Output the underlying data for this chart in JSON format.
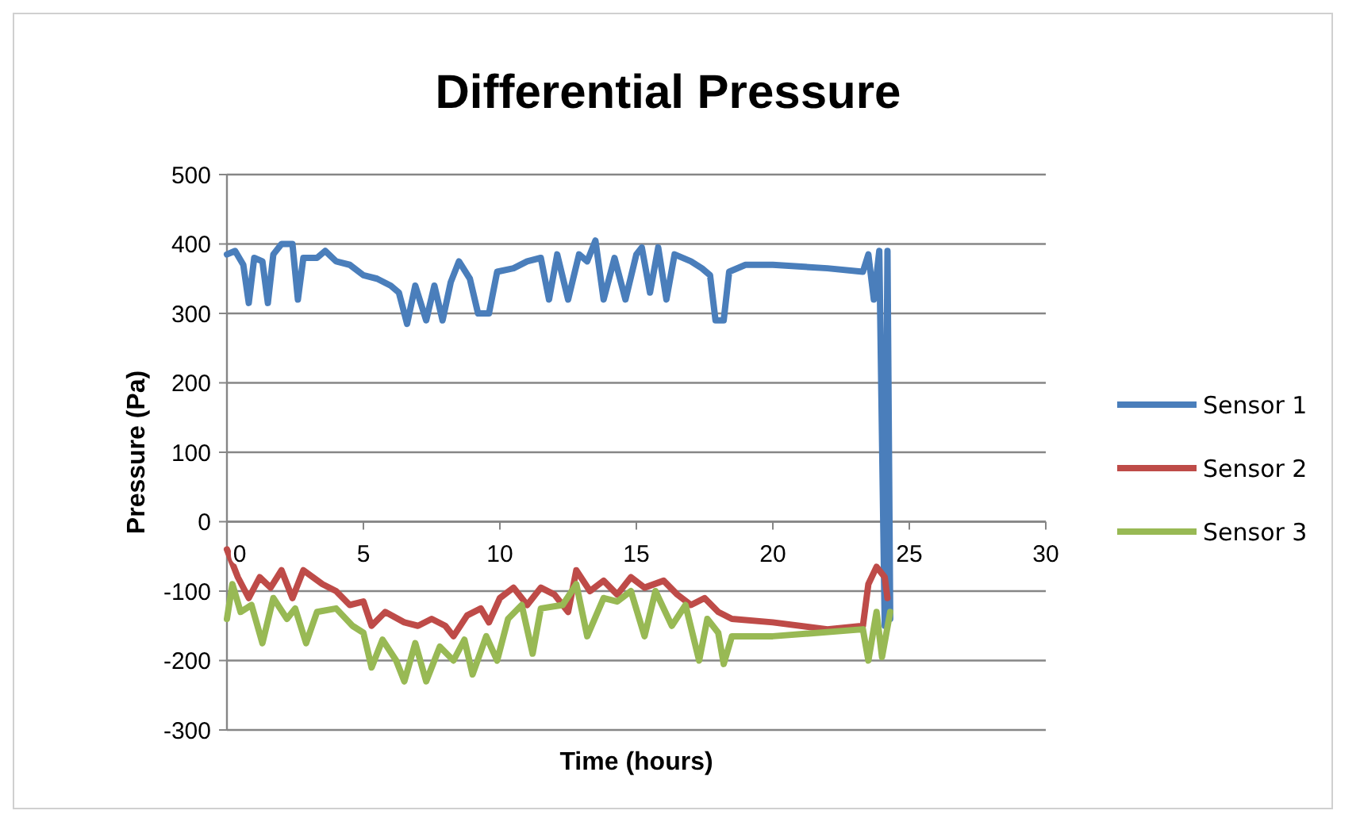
{
  "chart_data": {
    "type": "line",
    "title": "Differential Pressure",
    "xlabel": "Time (hours)",
    "ylabel": "Pressure (Pa)",
    "xlim": [
      0,
      30
    ],
    "xticks": [
      0,
      5,
      10,
      15,
      20,
      25,
      30
    ],
    "ylim": [
      -300,
      500
    ],
    "yticks": [
      -300,
      -200,
      -100,
      0,
      100,
      200,
      300,
      400,
      500
    ],
    "grid": "y",
    "legend": "right",
    "marker": "none",
    "line_style": "solid",
    "series": [
      {
        "name": "Sensor 1",
        "color": "#4a7ebb",
        "x": [
          0,
          0.3,
          0.6,
          0.8,
          1.0,
          1.3,
          1.5,
          1.7,
          2.0,
          2.4,
          2.6,
          2.8,
          3.3,
          3.6,
          4.0,
          4.5,
          5.0,
          5.5,
          6.0,
          6.3,
          6.6,
          6.9,
          7.3,
          7.6,
          7.9,
          8.2,
          8.5,
          8.9,
          9.2,
          9.6,
          9.9,
          10.5,
          11.0,
          11.5,
          11.8,
          12.1,
          12.5,
          12.9,
          13.2,
          13.5,
          13.8,
          14.2,
          14.6,
          15.0,
          15.2,
          15.5,
          15.8,
          16.1,
          16.4,
          17.0,
          17.4,
          17.7,
          17.9,
          18.2,
          18.4,
          19.0,
          20.0,
          22.0,
          23.3,
          23.5,
          23.7,
          23.9,
          24.1,
          24.2,
          24.3
        ],
        "values": [
          385,
          390,
          370,
          315,
          380,
          375,
          315,
          385,
          400,
          400,
          320,
          380,
          380,
          390,
          375,
          370,
          355,
          350,
          340,
          330,
          285,
          340,
          290,
          340,
          290,
          345,
          375,
          350,
          300,
          300,
          360,
          365,
          375,
          380,
          320,
          385,
          320,
          385,
          375,
          405,
          320,
          380,
          320,
          385,
          395,
          330,
          395,
          320,
          385,
          375,
          365,
          355,
          290,
          290,
          360,
          370,
          370,
          365,
          360,
          385,
          320,
          390,
          -150,
          390,
          -140
        ]
      },
      {
        "name": "Sensor 2",
        "color": "#be4b48",
        "x": [
          0,
          0.4,
          0.8,
          1.2,
          1.6,
          2.0,
          2.4,
          2.8,
          3.5,
          4.0,
          4.5,
          5.0,
          5.3,
          5.8,
          6.5,
          7.0,
          7.5,
          8.0,
          8.3,
          8.8,
          9.3,
          9.6,
          10.0,
          10.5,
          11.0,
          11.5,
          12.0,
          12.5,
          12.8,
          13.3,
          13.8,
          14.3,
          14.8,
          15.3,
          16.0,
          16.5,
          17.0,
          17.5,
          18.0,
          18.5,
          20.0,
          22.0,
          23.3,
          23.5,
          23.8,
          24.1,
          24.2
        ],
        "values": [
          -40,
          -80,
          -110,
          -80,
          -95,
          -70,
          -110,
          -70,
          -90,
          -100,
          -120,
          -115,
          -150,
          -130,
          -145,
          -150,
          -140,
          -150,
          -165,
          -135,
          -125,
          -145,
          -110,
          -95,
          -120,
          -95,
          -105,
          -130,
          -70,
          -100,
          -85,
          -105,
          -80,
          -95,
          -85,
          -105,
          -120,
          -110,
          -130,
          -140,
          -145,
          -155,
          -150,
          -90,
          -65,
          -80,
          -110
        ]
      },
      {
        "name": "Sensor 3",
        "color": "#98b954",
        "x": [
          0,
          0.2,
          0.5,
          0.9,
          1.3,
          1.7,
          2.2,
          2.5,
          2.9,
          3.3,
          4.0,
          4.6,
          5.0,
          5.3,
          5.7,
          6.2,
          6.5,
          6.9,
          7.3,
          7.8,
          8.3,
          8.7,
          9.0,
          9.5,
          9.9,
          10.3,
          10.8,
          11.2,
          11.5,
          12.3,
          12.8,
          13.2,
          13.8,
          14.3,
          14.8,
          15.3,
          15.7,
          16.3,
          16.8,
          17.3,
          17.6,
          18.0,
          18.2,
          18.5,
          20.0,
          23.3,
          23.5,
          23.8,
          24.0,
          24.3
        ],
        "values": [
          -140,
          -90,
          -130,
          -120,
          -175,
          -110,
          -140,
          -125,
          -175,
          -130,
          -125,
          -150,
          -160,
          -210,
          -170,
          -200,
          -230,
          -175,
          -230,
          -180,
          -200,
          -170,
          -220,
          -165,
          -200,
          -140,
          -120,
          -190,
          -125,
          -120,
          -90,
          -165,
          -110,
          -115,
          -100,
          -165,
          -100,
          -150,
          -120,
          -200,
          -140,
          -160,
          -205,
          -165,
          -165,
          -155,
          -200,
          -130,
          -195,
          -130
        ]
      }
    ]
  }
}
